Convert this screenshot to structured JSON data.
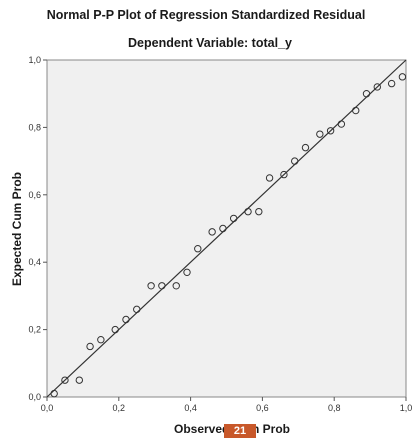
{
  "chart_data": {
    "type": "scatter",
    "title": "Normal P-P Plot of Regression Standardized Residual",
    "subtitle": "Dependent Variable: total_y",
    "xlabel": "Observed Cum Prob",
    "ylabel": "Expected Cum Prob",
    "xlim": [
      0,
      1
    ],
    "ylim": [
      0,
      1
    ],
    "x_ticks": [
      "0,0",
      "0,2",
      "0,4",
      "0,6",
      "0,8",
      "1,0"
    ],
    "y_ticks": [
      "0,0",
      "0,2",
      "0,4",
      "0,6",
      "0,8",
      "1,0"
    ],
    "reference_line": [
      [
        0,
        0
      ],
      [
        1,
        1
      ]
    ],
    "grid": false,
    "plot_background": "#f0f0f0",
    "marker": "open-circle",
    "points": [
      {
        "x": 0.02,
        "y": 0.01
      },
      {
        "x": 0.05,
        "y": 0.05
      },
      {
        "x": 0.09,
        "y": 0.05
      },
      {
        "x": 0.12,
        "y": 0.15
      },
      {
        "x": 0.15,
        "y": 0.17
      },
      {
        "x": 0.19,
        "y": 0.2
      },
      {
        "x": 0.22,
        "y": 0.23
      },
      {
        "x": 0.25,
        "y": 0.26
      },
      {
        "x": 0.29,
        "y": 0.33
      },
      {
        "x": 0.32,
        "y": 0.33
      },
      {
        "x": 0.36,
        "y": 0.33
      },
      {
        "x": 0.39,
        "y": 0.37
      },
      {
        "x": 0.42,
        "y": 0.44
      },
      {
        "x": 0.46,
        "y": 0.49
      },
      {
        "x": 0.49,
        "y": 0.5
      },
      {
        "x": 0.52,
        "y": 0.53
      },
      {
        "x": 0.56,
        "y": 0.55
      },
      {
        "x": 0.59,
        "y": 0.55
      },
      {
        "x": 0.62,
        "y": 0.65
      },
      {
        "x": 0.66,
        "y": 0.66
      },
      {
        "x": 0.69,
        "y": 0.7
      },
      {
        "x": 0.72,
        "y": 0.74
      },
      {
        "x": 0.76,
        "y": 0.78
      },
      {
        "x": 0.79,
        "y": 0.79
      },
      {
        "x": 0.82,
        "y": 0.81
      },
      {
        "x": 0.86,
        "y": 0.85
      },
      {
        "x": 0.89,
        "y": 0.9
      },
      {
        "x": 0.92,
        "y": 0.92
      },
      {
        "x": 0.96,
        "y": 0.93
      },
      {
        "x": 0.99,
        "y": 0.95
      }
    ]
  },
  "overlay": {
    "badge_text": "21"
  }
}
